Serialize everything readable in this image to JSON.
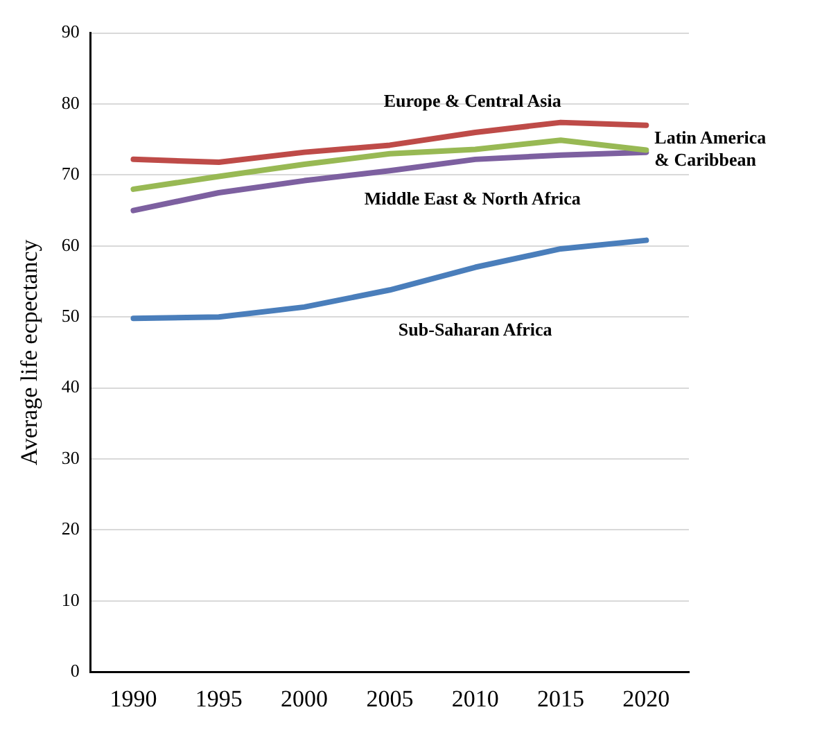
{
  "chart_data": {
    "type": "line",
    "ylabel": "Average life ecpectancy",
    "categories": [
      "1990",
      "1995",
      "2000",
      "2005",
      "2010",
      "2015",
      "2020"
    ],
    "series": [
      {
        "name": "Sub-Saharan Africa",
        "color": "#4a7ebb",
        "values": [
          49.8,
          50,
          51.4,
          53.8,
          57,
          59.6,
          60.8
        ]
      },
      {
        "name": "Europe & Central Asia",
        "color": "#be4b48",
        "values": [
          72.2,
          71.8,
          73.2,
          74.2,
          76,
          77.4,
          77
        ]
      },
      {
        "name": "Latin America & Caribbean",
        "color": "#98b954",
        "values": [
          68,
          69.8,
          71.5,
          73,
          73.6,
          74.9,
          73.5
        ]
      },
      {
        "name": "Middle East & North Africa",
        "color": "#7d60a0",
        "values": [
          65,
          67.5,
          69.2,
          70.6,
          72.2,
          72.8,
          73.2
        ]
      }
    ],
    "ylim": [
      0,
      90
    ],
    "yticks": [
      0,
      10,
      20,
      30,
      40,
      50,
      60,
      70,
      80,
      90
    ],
    "grid": "y",
    "legend": false,
    "marker": "none",
    "line_style": "solid"
  }
}
